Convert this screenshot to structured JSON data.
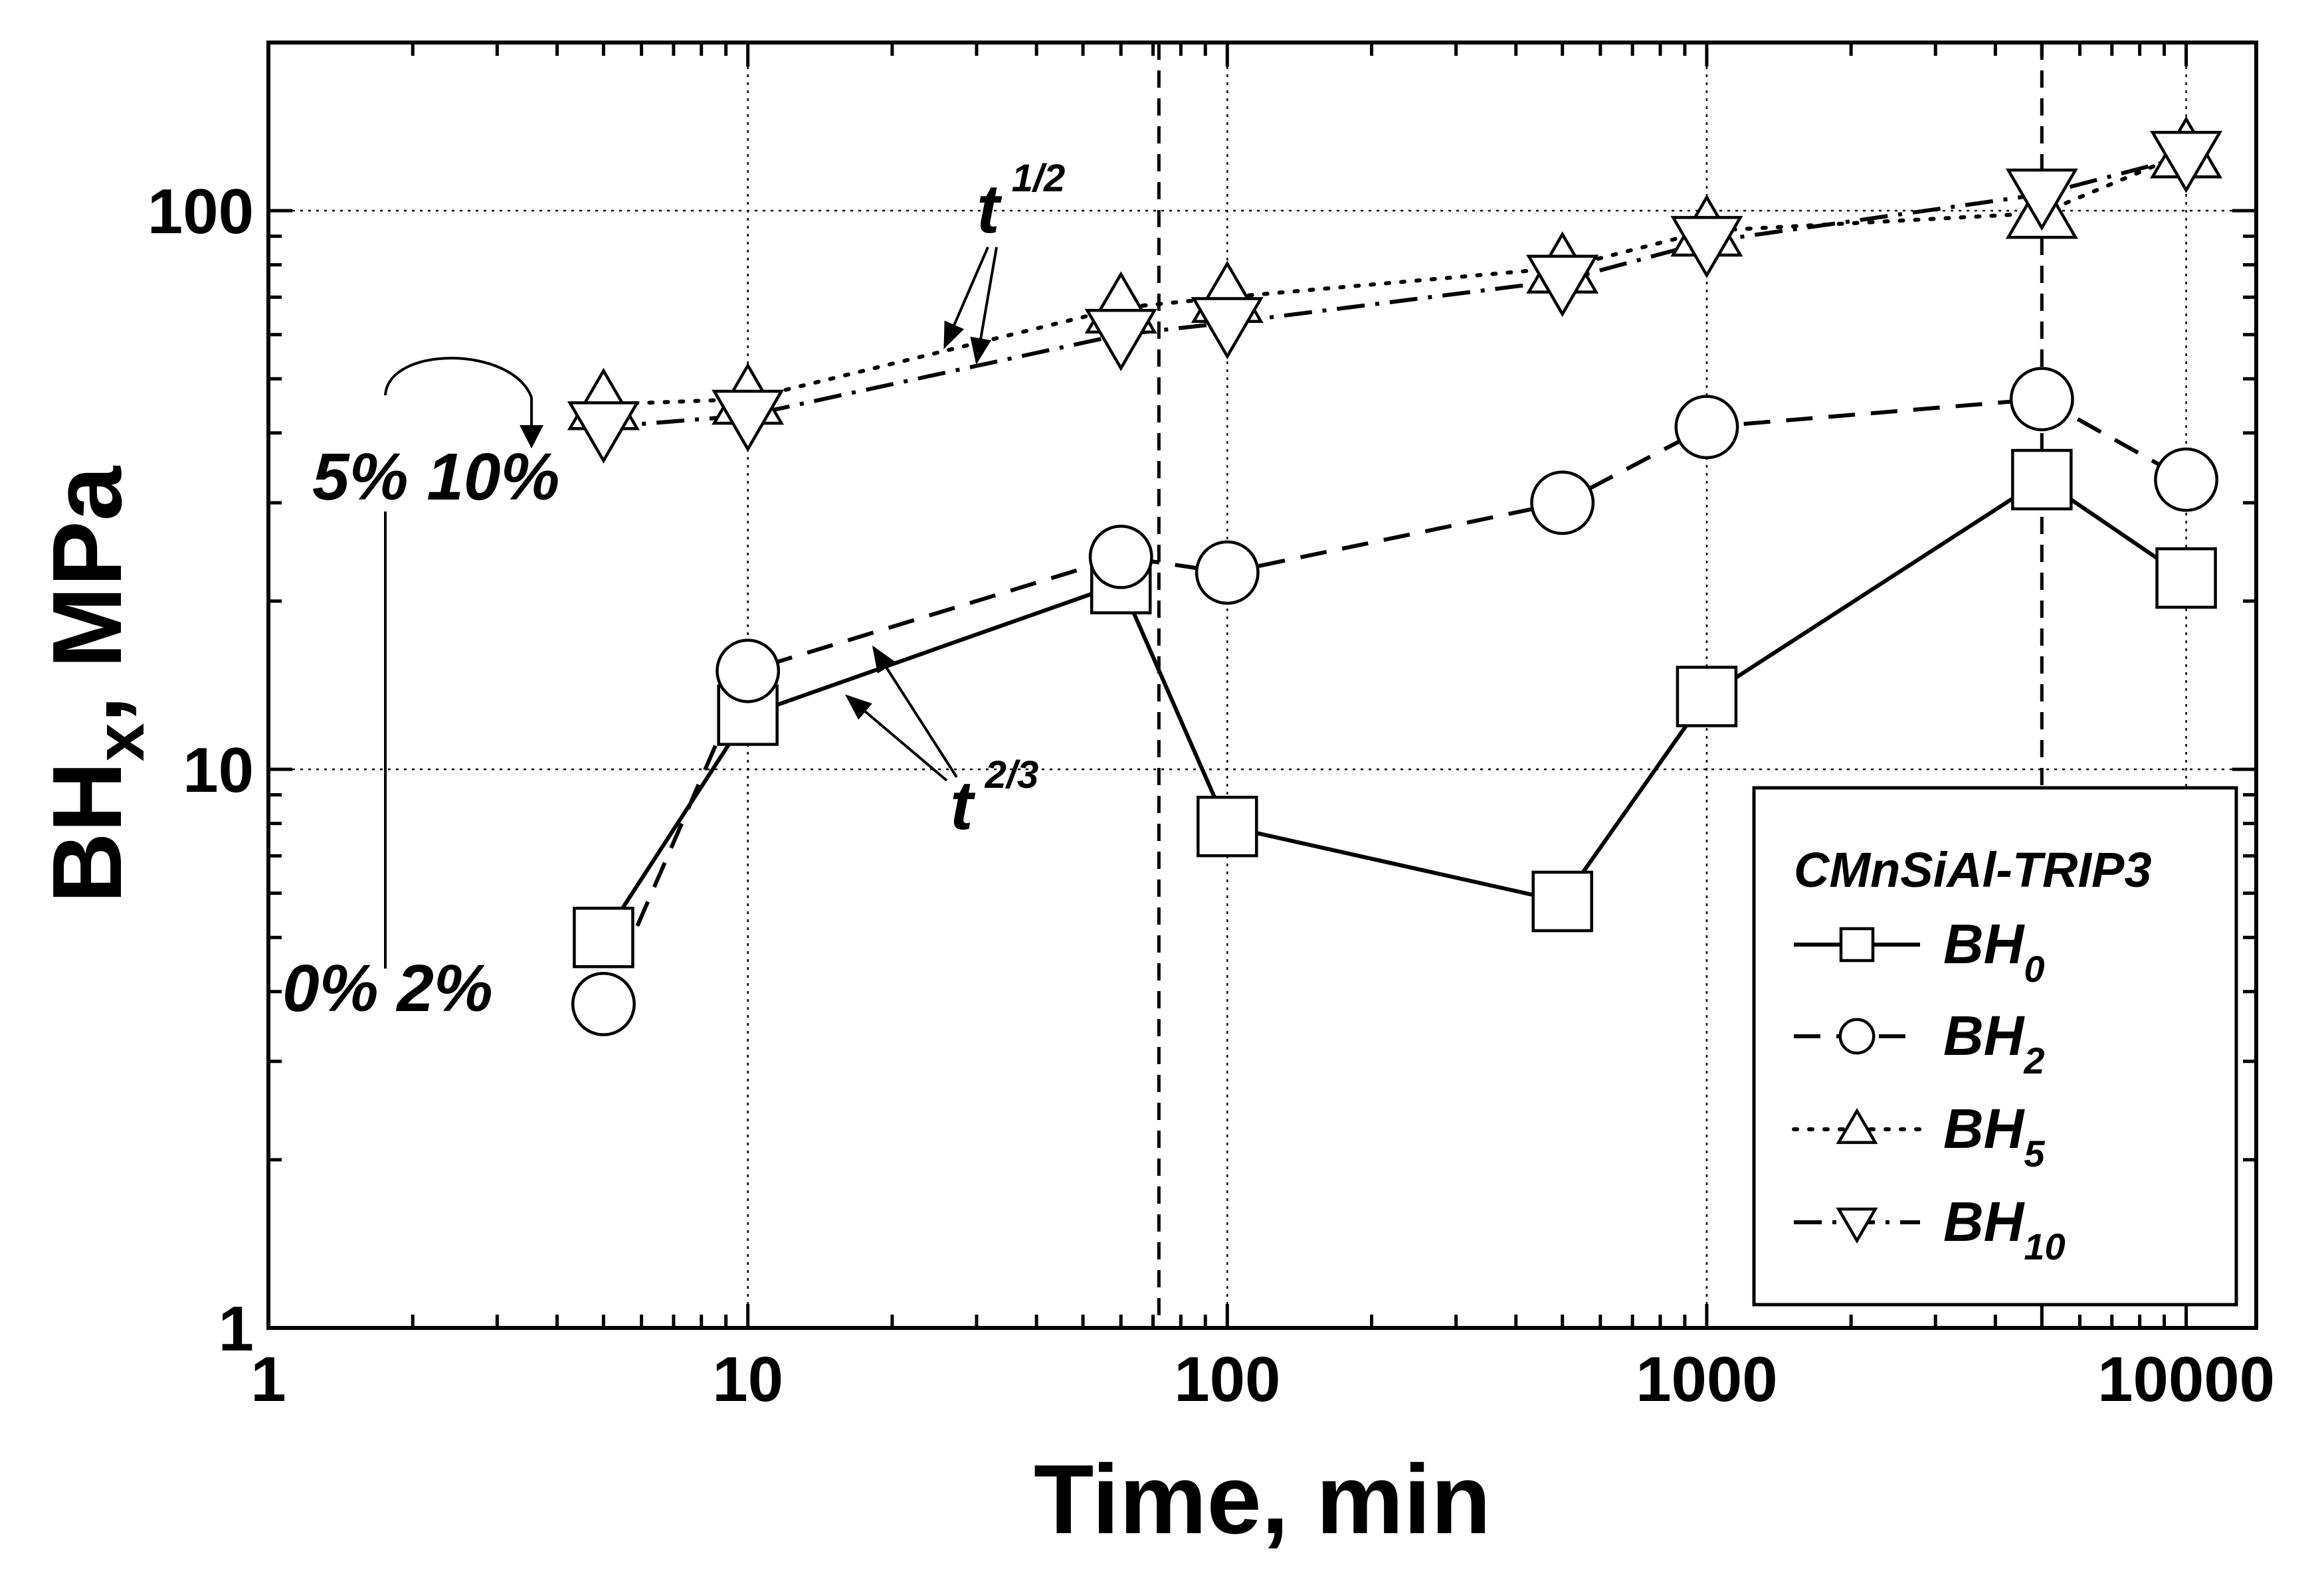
{
  "chart_data": {
    "type": "line",
    "xscale": "log",
    "yscale": "log",
    "xlabel": "Time, min",
    "ylabel_main": "BH",
    "ylabel_sub": "x",
    "ylabel_tail": ", MPa",
    "xlim": [
      1,
      14000
    ],
    "ylim": [
      1,
      200
    ],
    "x_ticks": [
      1,
      10,
      100,
      1000,
      10000
    ],
    "x_tick_labels": [
      "1",
      "10",
      "100",
      "1000",
      "10000"
    ],
    "y_ticks": [
      1,
      10,
      100
    ],
    "y_tick_labels": [
      "1",
      "10",
      "100"
    ],
    "grid": true,
    "x_gridlines": [
      10,
      100,
      1000,
      10000
    ],
    "y_gridlines": [
      10,
      100
    ],
    "vertical_dashed_lines": [
      72,
      5000
    ],
    "legend": {
      "title": "CMnSiAl-TRIP3",
      "position": "bottom-right",
      "entries": [
        {
          "name": "BH",
          "sub": "0",
          "marker": "square",
          "linestyle": "solid"
        },
        {
          "name": "BH",
          "sub": "2",
          "marker": "circle",
          "linestyle": "dashed"
        },
        {
          "name": "BH",
          "sub": "5",
          "marker": "triangle-up",
          "linestyle": "dotted"
        },
        {
          "name": "BH",
          "sub": "10",
          "marker": "triangle-down",
          "linestyle": "dash-dot"
        }
      ]
    },
    "series": [
      {
        "name": "BH0",
        "marker": "square",
        "linestyle": "solid",
        "x": [
          5,
          10,
          60,
          100,
          500,
          1000,
          5000,
          10000
        ],
        "y": [
          5.0,
          12.5,
          21.5,
          7.9,
          5.8,
          13.5,
          33,
          22
        ]
      },
      {
        "name": "BH2",
        "marker": "circle",
        "linestyle": "dashed",
        "x": [
          5,
          10,
          60,
          100,
          500,
          1000,
          5000,
          10000
        ],
        "y": [
          3.8,
          15,
          24,
          22.5,
          30,
          41,
          46,
          33
        ]
      },
      {
        "name": "BH5",
        "marker": "triangle-up",
        "linestyle": "dotted",
        "x": [
          5,
          10,
          60,
          100,
          500,
          1000,
          5000,
          10000
        ],
        "y": [
          45,
          46,
          67,
          70,
          79,
          92,
          99,
          127
        ]
      },
      {
        "name": "BH10",
        "marker": "triangle-down",
        "linestyle": "dash-dot",
        "x": [
          5,
          10,
          60,
          100,
          500,
          1000,
          5000,
          10000
        ],
        "y": [
          41,
          43,
          60,
          63,
          75,
          88,
          107,
          125
        ]
      }
    ],
    "annotations": {
      "t_half_base": "t",
      "t_half_exp": "1/2",
      "t_two_thirds_base": "t",
      "t_two_thirds_exp": "2/3",
      "strain_high": "5% 10%",
      "strain_low": "0% 2%"
    }
  }
}
